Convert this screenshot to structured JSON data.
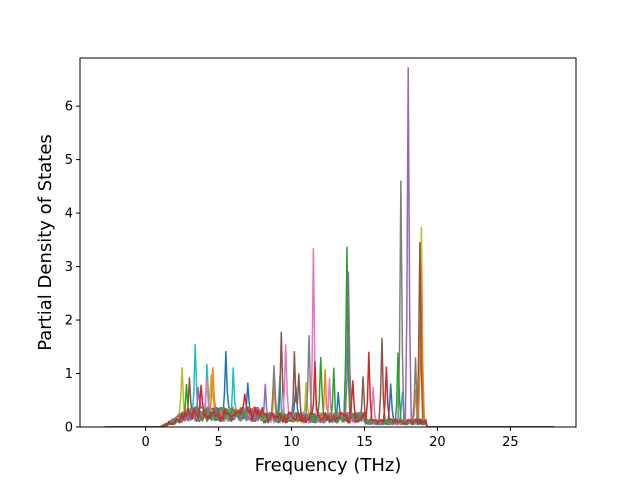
{
  "chart_data": {
    "type": "line",
    "title": "",
    "xlabel": "Frequency (THz)",
    "ylabel": "Partial Density of States",
    "xlim": [
      -4.5,
      29.5
    ],
    "ylim": [
      0,
      6.9
    ],
    "xticks": [
      0,
      5,
      10,
      15,
      20,
      25
    ],
    "yticks": [
      0,
      1,
      2,
      3,
      4,
      5,
      6
    ],
    "grid": false,
    "legend": "none",
    "x_range_of_data": [
      -2.8,
      28.0
    ],
    "series": [
      {
        "color": "#bcbd22",
        "peaks": [
          [
            2.5,
            1.0
          ],
          [
            4.5,
            0.85
          ],
          [
            11.0,
            0.75
          ],
          [
            18.9,
            3.6
          ]
        ]
      },
      {
        "color": "#17becf",
        "peaks": [
          [
            3.4,
            1.25
          ],
          [
            4.2,
            0.9
          ],
          [
            6.0,
            0.9
          ],
          [
            9.2,
            0.85
          ],
          [
            17.6,
            0.6
          ]
        ]
      },
      {
        "color": "#ff7f0e",
        "peaks": [
          [
            4.6,
            1.0
          ],
          [
            8.8,
            0.65
          ],
          [
            12.3,
            0.8
          ],
          [
            18.5,
            0.6
          ],
          [
            18.9,
            2.9
          ]
        ]
      },
      {
        "color": "#1f77b4",
        "peaks": [
          [
            5.5,
            1.05
          ],
          [
            7.0,
            0.55
          ],
          [
            10.3,
            0.6
          ],
          [
            13.2,
            0.5
          ],
          [
            16.8,
            0.7
          ]
        ]
      },
      {
        "color": "#8c564b",
        "peaks": [
          [
            3.0,
            0.75
          ],
          [
            9.3,
            1.5
          ],
          [
            10.2,
            1.15
          ],
          [
            10.5,
            0.9
          ],
          [
            14.9,
            0.8
          ],
          [
            16.2,
            1.55
          ],
          [
            18.8,
            3.3
          ]
        ]
      },
      {
        "color": "#e377c2",
        "peaks": [
          [
            4.2,
            0.6
          ],
          [
            9.6,
            1.35
          ],
          [
            11.5,
            3.2
          ],
          [
            12.6,
            0.65
          ],
          [
            15.6,
            0.7
          ]
        ]
      },
      {
        "color": "#7f7f7f",
        "peaks": [
          [
            8.8,
            1.05
          ],
          [
            11.2,
            1.45
          ],
          [
            13.8,
            2.8
          ],
          [
            17.5,
            4.5
          ],
          [
            18.5,
            1.2
          ]
        ]
      },
      {
        "color": "#9467bd",
        "peaks": [
          [
            3.6,
            0.5
          ],
          [
            8.2,
            0.55
          ],
          [
            13.9,
            2.7
          ],
          [
            18.0,
            6.6
          ]
        ]
      },
      {
        "color": "#2ca02c",
        "peaks": [
          [
            2.8,
            0.5
          ],
          [
            12.0,
            1.2
          ],
          [
            12.9,
            0.85
          ],
          [
            13.8,
            3.1
          ],
          [
            17.3,
            1.3
          ]
        ]
      },
      {
        "color": "#d62728",
        "peaks": [
          [
            3.8,
            0.55
          ],
          [
            6.8,
            0.5
          ],
          [
            11.6,
            1.0
          ],
          [
            14.2,
            0.6
          ],
          [
            15.3,
            1.3
          ],
          [
            16.5,
            1.0
          ]
        ]
      }
    ]
  }
}
